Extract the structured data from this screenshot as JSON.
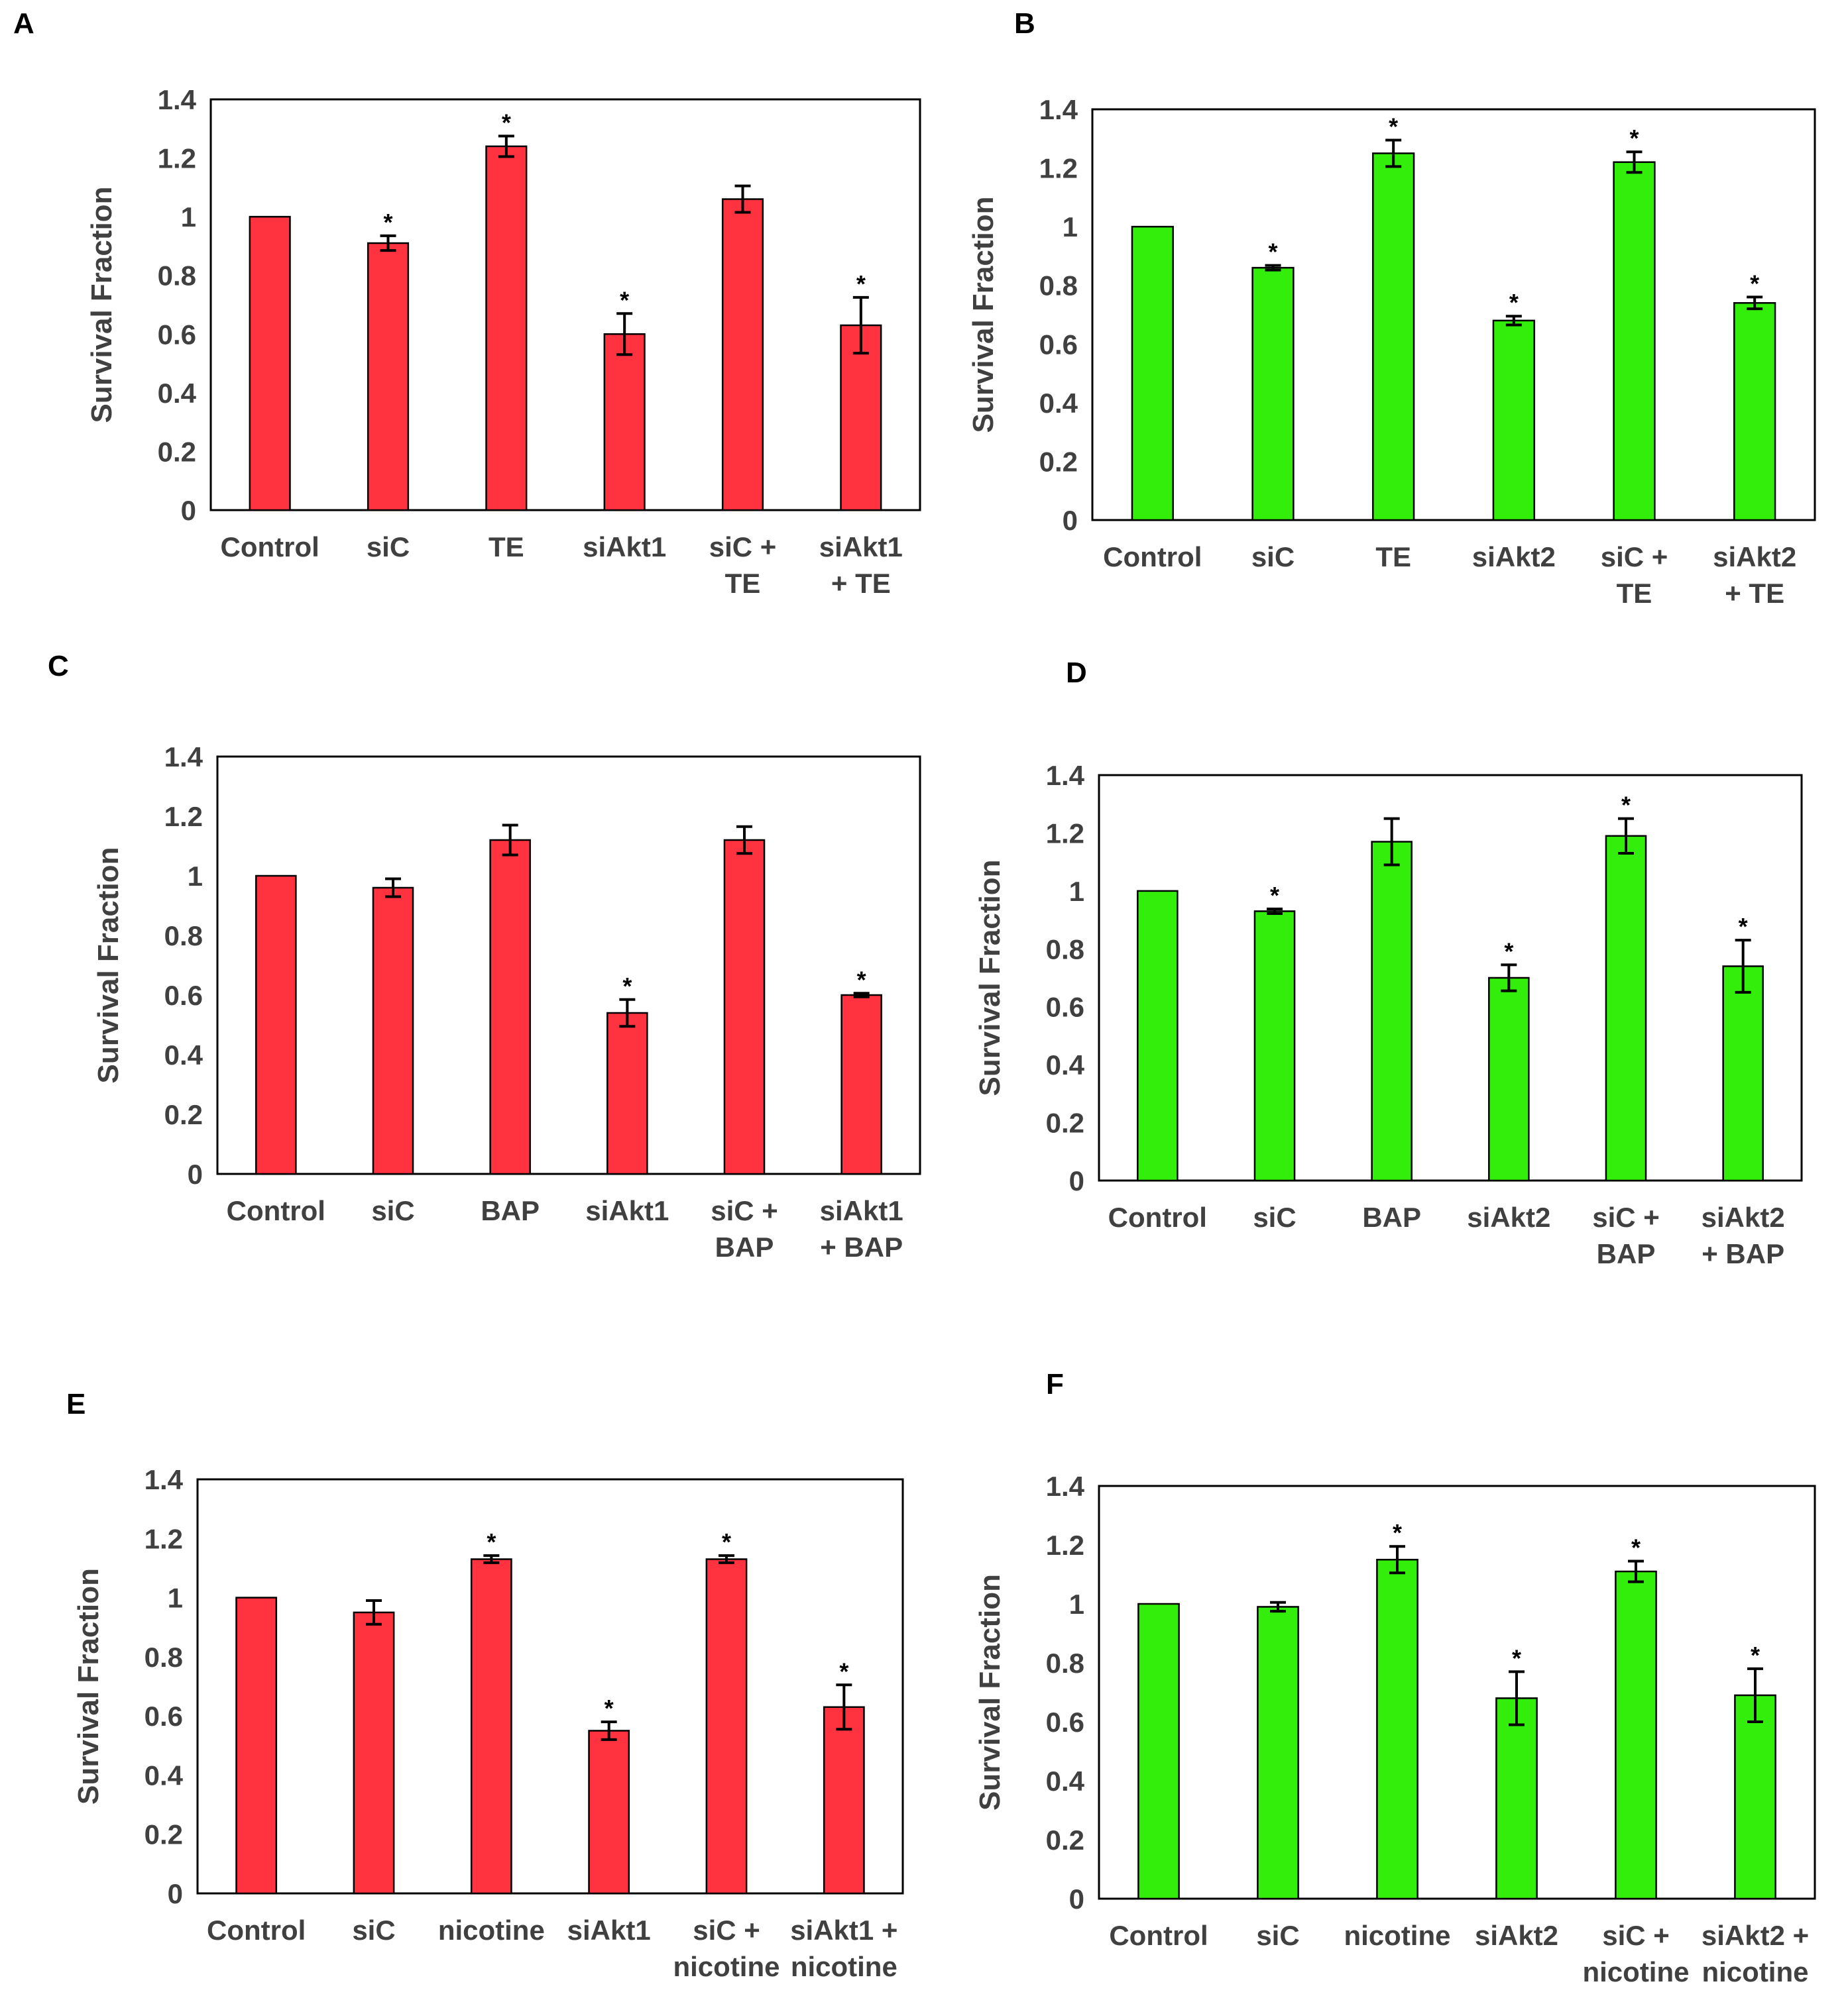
{
  "chart_data": [
    {
      "panel": "A",
      "type": "bar",
      "color": "#ff3340",
      "ylabel": "Survival Fraction",
      "ylim": [
        0,
        1.4
      ],
      "yticks": [
        "0",
        "0.2",
        "0.4",
        "0.6",
        "0.8",
        "1",
        "1.2",
        "1.4"
      ],
      "categories": [
        [
          "Control"
        ],
        [
          "siC"
        ],
        [
          "TE"
        ],
        [
          "siAkt1"
        ],
        [
          "siC +",
          "TE"
        ],
        [
          "siAkt1",
          "+ TE"
        ]
      ],
      "values": [
        1.0,
        0.91,
        1.24,
        0.6,
        1.06,
        0.63
      ],
      "errors": [
        0,
        0.025,
        0.035,
        0.07,
        0.045,
        0.095
      ],
      "significant": [
        false,
        true,
        true,
        true,
        false,
        true
      ],
      "star": "*"
    },
    {
      "panel": "B",
      "type": "bar",
      "color": "#33ee0a",
      "ylabel": "Survival Fraction",
      "ylim": [
        0,
        1.4
      ],
      "yticks": [
        "0",
        "0.2",
        "0.4",
        "0.6",
        "0.8",
        "1",
        "1.2",
        "1.4"
      ],
      "categories": [
        [
          "Control"
        ],
        [
          "siC"
        ],
        [
          "TE"
        ],
        [
          "siAkt2"
        ],
        [
          "siC +",
          "TE"
        ],
        [
          "siAkt2",
          "+ TE"
        ]
      ],
      "values": [
        1.0,
        0.86,
        1.25,
        0.68,
        1.22,
        0.74
      ],
      "errors": [
        0,
        0.008,
        0.045,
        0.015,
        0.035,
        0.02
      ],
      "significant": [
        false,
        true,
        true,
        true,
        true,
        true
      ],
      "star": "*"
    },
    {
      "panel": "C",
      "type": "bar",
      "color": "#ff3340",
      "ylabel": "Survival Fraction",
      "ylim": [
        0,
        1.4
      ],
      "yticks": [
        "0",
        "0.2",
        "0.4",
        "0.6",
        "0.8",
        "1",
        "1.2",
        "1.4"
      ],
      "categories": [
        [
          "Control"
        ],
        [
          "siC"
        ],
        [
          "BAP"
        ],
        [
          "siAkt1"
        ],
        [
          "siC +",
          "BAP"
        ],
        [
          "siAkt1",
          "+ BAP"
        ]
      ],
      "values": [
        1.0,
        0.96,
        1.12,
        0.54,
        1.12,
        0.6
      ],
      "errors": [
        0,
        0.03,
        0.05,
        0.045,
        0.045,
        0.006
      ],
      "significant": [
        false,
        false,
        false,
        true,
        false,
        true
      ],
      "star": "*"
    },
    {
      "panel": "D",
      "type": "bar",
      "color": "#33ee0a",
      "ylabel": "Survival Fraction",
      "ylim": [
        0,
        1.4
      ],
      "yticks": [
        "0",
        "0.2",
        "0.4",
        "0.6",
        "0.8",
        "1",
        "1.2",
        "1.4"
      ],
      "categories": [
        [
          "Control"
        ],
        [
          "siC"
        ],
        [
          "BAP"
        ],
        [
          "siAkt2"
        ],
        [
          "siC +",
          "BAP"
        ],
        [
          "siAkt2",
          "+ BAP"
        ]
      ],
      "values": [
        1.0,
        0.93,
        1.17,
        0.7,
        1.19,
        0.74
      ],
      "errors": [
        0,
        0.008,
        0.08,
        0.045,
        0.06,
        0.09
      ],
      "significant": [
        false,
        true,
        false,
        true,
        true,
        true
      ],
      "star": "*"
    },
    {
      "panel": "E",
      "type": "bar",
      "color": "#ff3340",
      "ylabel": "Survival Fraction",
      "ylim": [
        0,
        1.4
      ],
      "yticks": [
        "0",
        "0.2",
        "0.4",
        "0.6",
        "0.8",
        "1",
        "1.2",
        "1.4"
      ],
      "categories": [
        [
          "Control"
        ],
        [
          "siC"
        ],
        [
          "nicotine"
        ],
        [
          "siAkt1"
        ],
        [
          "siC +",
          "nicotine"
        ],
        [
          "siAkt1 +",
          "nicotine"
        ]
      ],
      "values": [
        1.0,
        0.95,
        1.13,
        0.55,
        1.13,
        0.63
      ],
      "errors": [
        0,
        0.04,
        0.012,
        0.03,
        0.012,
        0.075
      ],
      "significant": [
        false,
        false,
        true,
        true,
        true,
        true
      ],
      "star": "*"
    },
    {
      "panel": "F",
      "type": "bar",
      "color": "#33ee0a",
      "ylabel": "Survival Fraction",
      "ylim": [
        0,
        1.4
      ],
      "yticks": [
        "0",
        "0.2",
        "0.4",
        "0.6",
        "0.8",
        "1",
        "1.2",
        "1.4"
      ],
      "categories": [
        [
          "Control"
        ],
        [
          "siC"
        ],
        [
          "nicotine"
        ],
        [
          "siAkt2"
        ],
        [
          "siC +",
          "nicotine"
        ],
        [
          "siAkt2 +",
          "nicotine"
        ]
      ],
      "values": [
        1.0,
        0.99,
        1.15,
        0.68,
        1.11,
        0.69
      ],
      "errors": [
        0,
        0.015,
        0.045,
        0.09,
        0.035,
        0.09
      ],
      "significant": [
        false,
        false,
        true,
        true,
        true,
        true
      ],
      "star": "*"
    }
  ]
}
